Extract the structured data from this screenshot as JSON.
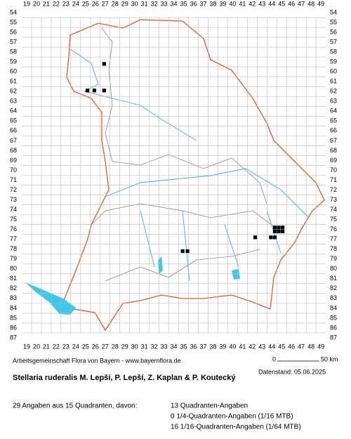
{
  "map": {
    "x_labels": [
      19,
      20,
      21,
      22,
      23,
      24,
      25,
      26,
      27,
      28,
      29,
      30,
      31,
      32,
      33,
      34,
      35,
      36,
      37,
      38,
      39,
      40,
      41,
      42,
      43,
      44,
      45,
      46,
      47,
      48,
      49
    ],
    "y_labels": [
      54,
      55,
      56,
      57,
      58,
      59,
      60,
      61,
      62,
      63,
      64,
      65,
      66,
      67,
      68,
      69,
      70,
      71,
      72,
      73,
      74,
      75,
      76,
      77,
      78,
      79,
      80,
      81,
      82,
      83,
      84,
      85,
      86,
      87
    ],
    "records": [
      {
        "x": 26.9,
        "y": 59.2
      },
      {
        "x": 25.2,
        "y": 61.9
      },
      {
        "x": 25.9,
        "y": 61.9
      },
      {
        "x": 26.9,
        "y": 61.9
      },
      {
        "x": 34.9,
        "y": 78.2
      },
      {
        "x": 35.4,
        "y": 78.2
      },
      {
        "x": 42.3,
        "y": 76.8
      },
      {
        "x": 44.3,
        "y": 75.8
      },
      {
        "x": 44.7,
        "y": 75.8
      },
      {
        "x": 45.1,
        "y": 75.8
      },
      {
        "x": 44.3,
        "y": 76.2
      },
      {
        "x": 44.7,
        "y": 76.2
      },
      {
        "x": 45.1,
        "y": 76.2
      },
      {
        "x": 43.9,
        "y": 76.8
      },
      {
        "x": 44.3,
        "y": 76.8
      }
    ],
    "credit": "Arbeitsgemeinschaft Flora von Bayern - www.bayernflora.de",
    "scale_start": "0",
    "scale_end": "50 km",
    "date": "Datenstand: 05.06.2025",
    "title": "Stellaria ruderalis M. Lepší, P. Lepší, Z. Kaplan & P. Koutecký",
    "summary": "29 Angaben aus 15 Quadranten, davon:",
    "counts": [
      "13 Quadranten-Angaben",
      "0 1/4-Quadranten-Angaben (1/16 MTB)",
      "16 1/16-Quadranten-Angaben (1/64 MTB)"
    ]
  }
}
